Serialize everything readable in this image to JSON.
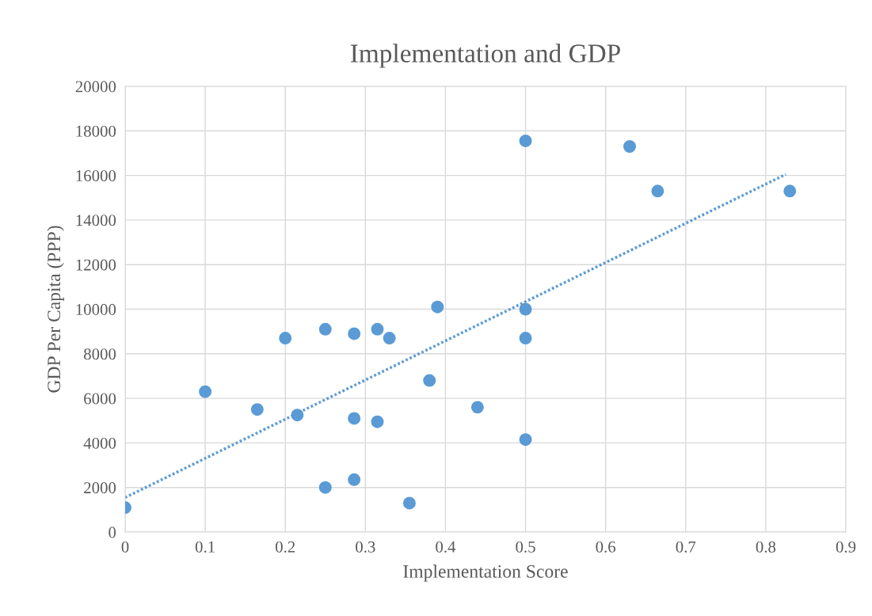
{
  "chart_data": {
    "type": "scatter",
    "title": "Implementation and GDP",
    "xlabel": "Implementation Score",
    "ylabel": "GDP Per Capita (PPP)",
    "xlim": [
      0,
      0.9
    ],
    "xticks": [
      0,
      0.1,
      0.2,
      0.3,
      0.4,
      0.5,
      0.6,
      0.7,
      0.8,
      0.9
    ],
    "ylim": [
      0,
      20000
    ],
    "yticks": [
      0,
      2000,
      4000,
      6000,
      8000,
      10000,
      12000,
      14000,
      16000,
      18000,
      20000
    ],
    "grid": true,
    "marker": "circle",
    "legend": false,
    "series": [
      {
        "color": "#5b9bd5",
        "x": [
          0,
          0.1,
          0.165,
          0.2,
          0.215,
          0.25,
          0.25,
          0.286,
          0.286,
          0.286,
          0.315,
          0.315,
          0.33,
          0.355,
          0.38,
          0.39,
          0.44,
          0.5,
          0.5,
          0.5,
          0.5,
          0.63,
          0.665,
          0.83
        ],
        "values": [
          1100,
          6300,
          5500,
          8700,
          5250,
          9100,
          2000,
          8900,
          5100,
          2350,
          9100,
          4950,
          8700,
          1300,
          6800,
          10100,
          5600,
          17550,
          10000,
          8700,
          4150,
          17300,
          15300,
          15300
        ]
      },
      {
        "type": "line",
        "color": "#5b9bd5",
        "line_style": "dotted",
        "marker": "none",
        "x": [
          0,
          0.825
        ],
        "values": [
          1550,
          16050
        ]
      }
    ]
  }
}
